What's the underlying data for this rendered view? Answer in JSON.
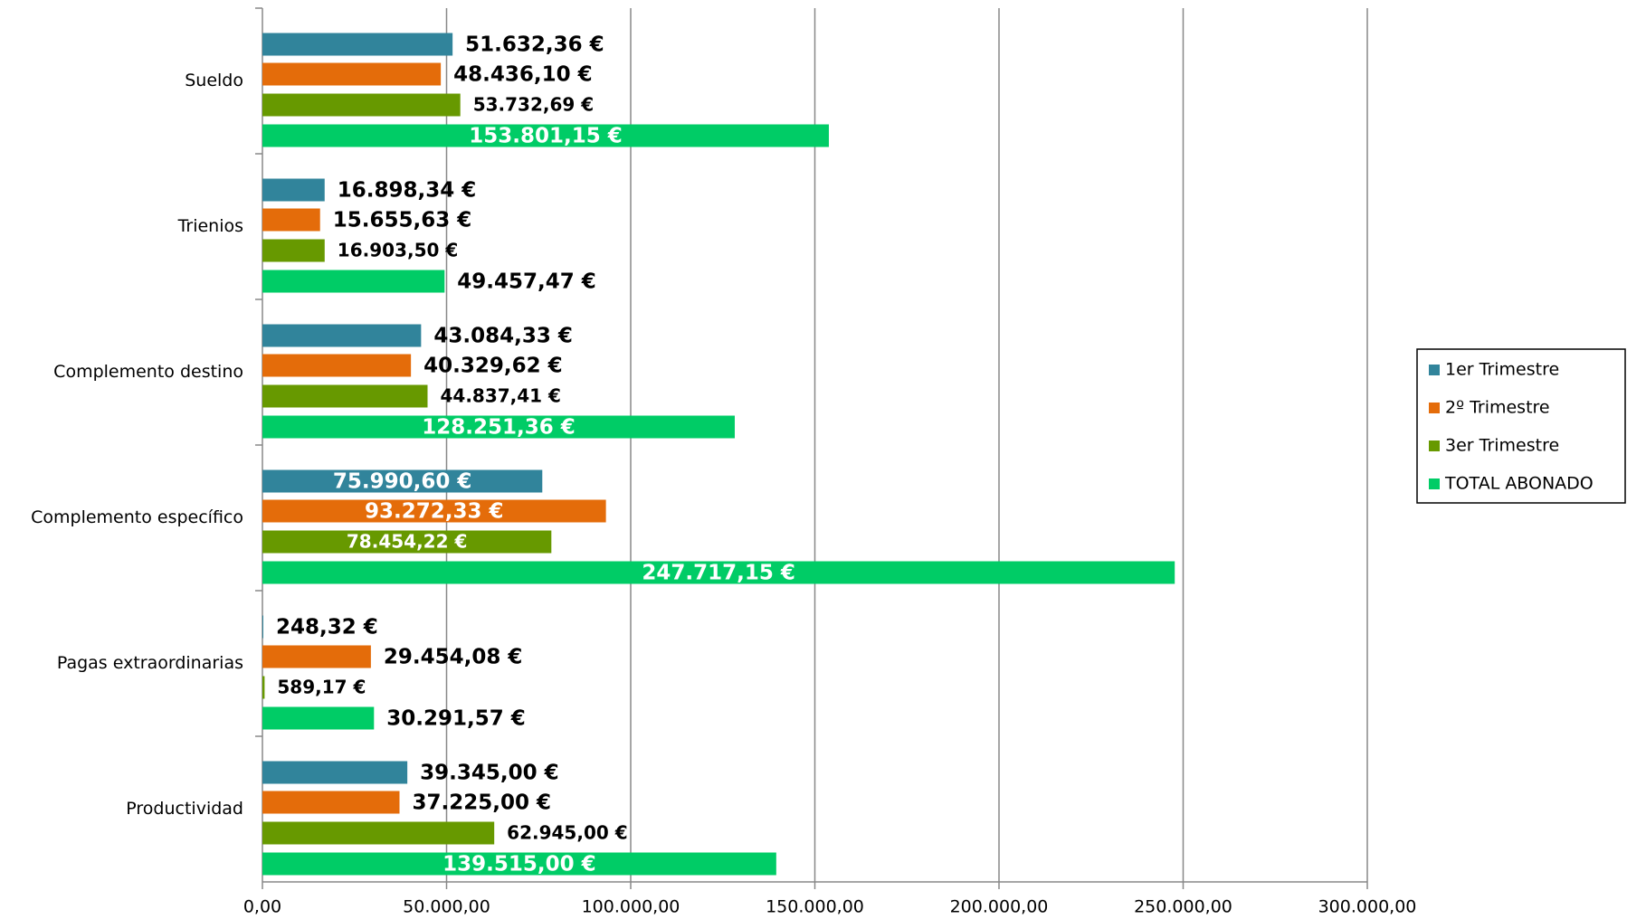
{
  "chart_data": {
    "type": "hbar",
    "categories": [
      "Sueldo",
      "Trienios",
      "Complemento destino",
      "Complemento específico",
      "Pagas extraordinarias",
      "Productividad"
    ],
    "series": [
      {
        "name": "1er Trimestre",
        "color": "#31849b",
        "values": [
          51632.36,
          16898.34,
          43084.33,
          75990.6,
          248.32,
          39345.0
        ],
        "value_labels": [
          "51.632,36 €",
          "16.898,34 €",
          "43.084,33 €",
          "75.990,60 €",
          "248,32 €",
          "39.345,00 €"
        ]
      },
      {
        "name": "2º Trimestre",
        "color": "#e46c0a",
        "values": [
          48436.1,
          15655.63,
          40329.62,
          93272.33,
          29454.08,
          37225.0
        ],
        "value_labels": [
          "48.436,10 €",
          "15.655,63 €",
          "40.329,62 €",
          "93.272,33 €",
          "29.454,08 €",
          "37.225,00 €"
        ]
      },
      {
        "name": "3er Trimestre",
        "color": "#679900",
        "values": [
          53732.69,
          16903.5,
          44837.41,
          78454.22,
          589.17,
          62945.0
        ],
        "value_labels": [
          "53.732,69 €",
          "16.903,50 €",
          "44.837,41 €",
          "78.454,22 €",
          "589,17 €",
          "62.945,00 €"
        ]
      },
      {
        "name": "TOTAL ABONADO",
        "color": "#00cc66",
        "values": [
          153801.15,
          49457.47,
          128251.36,
          247717.15,
          30291.57,
          139515.0
        ],
        "value_labels": [
          "153.801,15 €",
          "49.457,47 €",
          "128.251,36 €",
          "247.717,15 €",
          "30.291,57 €",
          "139.515,00 €"
        ]
      }
    ],
    "xlim": [
      0,
      300000
    ],
    "xticks": [
      {
        "value": 0,
        "label": "0,00"
      },
      {
        "value": 50000,
        "label": "50.000,00"
      },
      {
        "value": 100000,
        "label": "100.000,00"
      },
      {
        "value": 150000,
        "label": "150.000,00"
      },
      {
        "value": 200000,
        "label": "200.000,00"
      },
      {
        "value": 250000,
        "label": "250.000,00"
      },
      {
        "value": 300000,
        "label": "300.000,00"
      }
    ],
    "grid": true,
    "legend": "right"
  }
}
